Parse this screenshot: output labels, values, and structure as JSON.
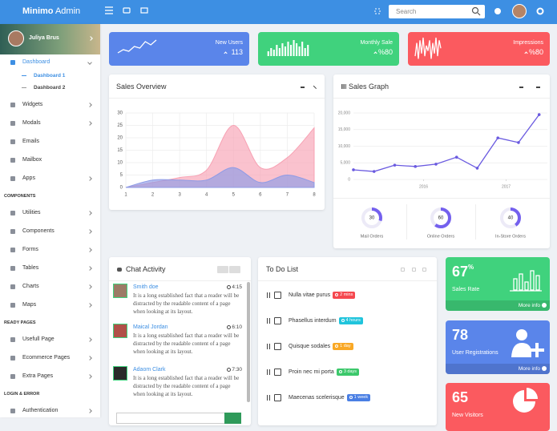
{
  "header": {
    "brand": "Minimo",
    "brand_suffix": "Admin",
    "search": "Search"
  },
  "profile": {
    "name": "Juliya Brus"
  },
  "sidebar": [
    {
      "label": "Dashboard",
      "active": true,
      "submenu": true,
      "children": [
        "Dashboard 1",
        "Dashboard 2"
      ]
    },
    {
      "label": "Widgets",
      "submenu": true
    },
    {
      "label": "Modals",
      "submenu": true
    },
    {
      "label": "Emails",
      "submenu": false
    },
    {
      "label": "Mailbox",
      "submenu": false
    },
    {
      "label": "Apps",
      "submenu": true
    },
    {
      "heading": "COMPONENTS"
    },
    {
      "label": "Utilities",
      "submenu": true
    },
    {
      "label": "Components",
      "submenu": true
    },
    {
      "label": "Forms",
      "submenu": true
    },
    {
      "label": "Tables",
      "submenu": true
    },
    {
      "label": "Charts",
      "submenu": true
    },
    {
      "label": "Maps",
      "submenu": true
    },
    {
      "heading": "READY PAGES"
    },
    {
      "label": "Usefull Page",
      "submenu": true
    },
    {
      "label": "Ecommerce Pages",
      "submenu": true
    },
    {
      "label": "Extra Pages",
      "submenu": true
    },
    {
      "heading": "LOGIN & ERROR"
    },
    {
      "label": "Authentication",
      "submenu": true
    }
  ],
  "stats": [
    {
      "label": "New Users",
      "value": "113",
      "color": "#5a85ea"
    },
    {
      "label": "Monthly Sale",
      "value": "%80",
      "color": "#40d27d"
    },
    {
      "label": "Impressions",
      "value": "%80",
      "color": "#fb5a5f"
    }
  ],
  "chart_data": [
    {
      "type": "line",
      "values": [
        2,
        4,
        3,
        6,
        5,
        9,
        7,
        10
      ],
      "ylim": [
        0,
        10
      ],
      "color": "#ffffff"
    },
    {
      "type": "bar",
      "values": [
        3,
        5,
        4,
        7,
        5,
        8,
        6,
        9,
        7,
        10,
        8,
        6,
        9,
        5,
        7
      ],
      "ylim": [
        0,
        10
      ],
      "color": "#ffffff"
    },
    {
      "type": "line",
      "values": [
        3,
        8,
        2,
        9,
        4,
        10,
        3,
        7,
        5,
        9,
        2,
        8,
        4,
        10,
        3,
        9,
        6
      ],
      "ylim": [
        0,
        10
      ],
      "color": "#ffffff"
    },
    {
      "type": "area",
      "title": "Sales Overview",
      "x": [
        1,
        2,
        3,
        4,
        5,
        6,
        7,
        8
      ],
      "xlim": [
        1,
        8
      ],
      "xticks": [
        1,
        2,
        3,
        4,
        5,
        6,
        7,
        8
      ],
      "ylim": [
        0,
        30
      ],
      "yticks": [
        0,
        5,
        10,
        15,
        20,
        25,
        30
      ],
      "grid": true,
      "series": [
        {
          "color": "#f7a1b3",
          "values": [
            0,
            2,
            4,
            7,
            25,
            8,
            12,
            24
          ]
        },
        {
          "color": "#8e9be6",
          "values": [
            0,
            3,
            3,
            3,
            8,
            2,
            5,
            2
          ]
        }
      ]
    },
    {
      "type": "line",
      "title": "Sales Graph",
      "x": [
        0,
        1,
        2,
        3,
        4,
        5,
        6,
        7,
        8,
        9
      ],
      "xlim": [
        0,
        9.4
      ],
      "xticks": [
        {
          "value": 3.4,
          "label": "2016"
        },
        {
          "value": 7.4,
          "label": "2017"
        }
      ],
      "ylim": [
        0,
        20000
      ],
      "yticks": [
        0,
        {
          "value": 5000,
          "label": "5,000"
        },
        {
          "value": 10000,
          "label": "10,000"
        },
        {
          "value": 15000,
          "label": "15,000"
        },
        {
          "value": 20000,
          "label": "20,000"
        }
      ],
      "grid": true,
      "series": [
        {
          "color": "#6a5ae0",
          "values": [
            2900,
            2400,
            4300,
            3900,
            4600,
            6700,
            3400,
            12500,
            11100,
            19500
          ]
        }
      ]
    },
    {
      "type": "donut",
      "categories": [
        "Mail Orders",
        "Online Orders",
        "In-Store Orders"
      ],
      "values": [
        30,
        60,
        40
      ],
      "ylim": [
        0,
        100
      ],
      "color": "#7460ee"
    }
  ],
  "chat": {
    "title": "Chat Activity",
    "messages": [
      {
        "name": "Smith doe",
        "time": "4:15",
        "text": "It is a long established fact that a reader will be distracted by the readable content of a page when looking at its layout."
      },
      {
        "name": "Maical Jordan",
        "time": "6:10",
        "text": "It is a long established fact that a reader will be distracted by the readable content of a page when looking at its layout."
      },
      {
        "name": "Adaom Clark",
        "time": "7:30",
        "text": "It is a long established fact that a reader will be distracted by the readable content of a page when looking at its layout."
      }
    ]
  },
  "todo": {
    "title": "To Do List",
    "items": [
      {
        "text": "Nulla vitae purus",
        "badge": "2 mins",
        "color": "#f5484f"
      },
      {
        "text": "Phasellus interdum",
        "badge": "4 hours",
        "color": "#20c4dc"
      },
      {
        "text": "Quisque sodales",
        "badge": "1 day",
        "color": "#f9a825"
      },
      {
        "text": "Proin nec mi porta",
        "badge": "3 days",
        "color": "#3cc86b"
      },
      {
        "text": "Maecenas scelerisque",
        "badge": "1 week",
        "color": "#4a7fe4"
      }
    ]
  },
  "tiles": [
    {
      "value": "67",
      "unit": "%",
      "label": "Sales Rate",
      "link": "More info",
      "color": "#40d27d"
    },
    {
      "value": "78",
      "label": "User Registrations",
      "link": "More info",
      "color": "#5a85ea"
    },
    {
      "value": "65",
      "label": "New Visitors",
      "color": "#fb5a5f"
    }
  ]
}
